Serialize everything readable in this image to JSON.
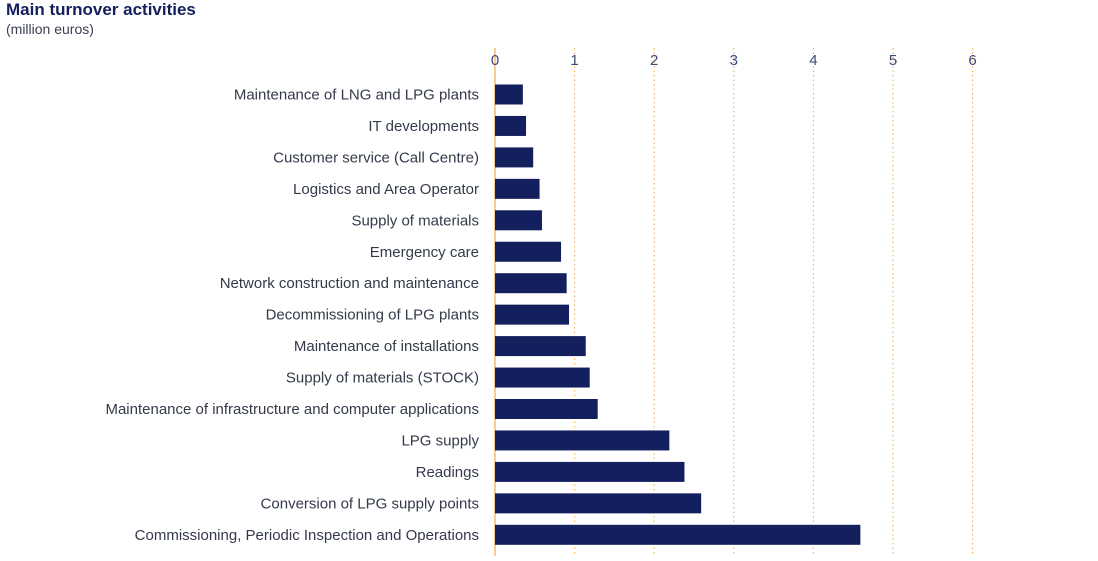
{
  "chart_data": {
    "type": "bar",
    "orientation": "horizontal",
    "title": "Main turnover activities",
    "subtitle": "(million euros)",
    "xlim": [
      0,
      6
    ],
    "ticks": [
      "0",
      "1",
      "2",
      "3",
      "4",
      "5",
      "6"
    ],
    "grid": true,
    "categories": [
      "Maintenance of LNG and LPG plants",
      "IT developments",
      "Customer service (Call Centre)",
      "Logistics and Area Operator",
      "Supply of materials",
      "Emergency care",
      "Network construction and maintenance",
      "Decommissioning of LPG plants",
      "Maintenance of installations",
      "Supply of materials (STOCK)",
      "Maintenance of infrastructure and computer applications",
      "LPG supply",
      "Readings",
      "Conversion of LPG supply points",
      "Commissioning, Periodic Inspection and Operations"
    ],
    "values": [
      0.35,
      0.39,
      0.48,
      0.56,
      0.59,
      0.83,
      0.9,
      0.93,
      1.14,
      1.19,
      1.29,
      2.19,
      2.38,
      2.59,
      4.59
    ],
    "colors": {
      "bar": "#141f5e",
      "grid": "#f0a850",
      "axis": "#f0a850",
      "tick_text": "#3a4a7a",
      "label_text": "#333a4a"
    }
  }
}
